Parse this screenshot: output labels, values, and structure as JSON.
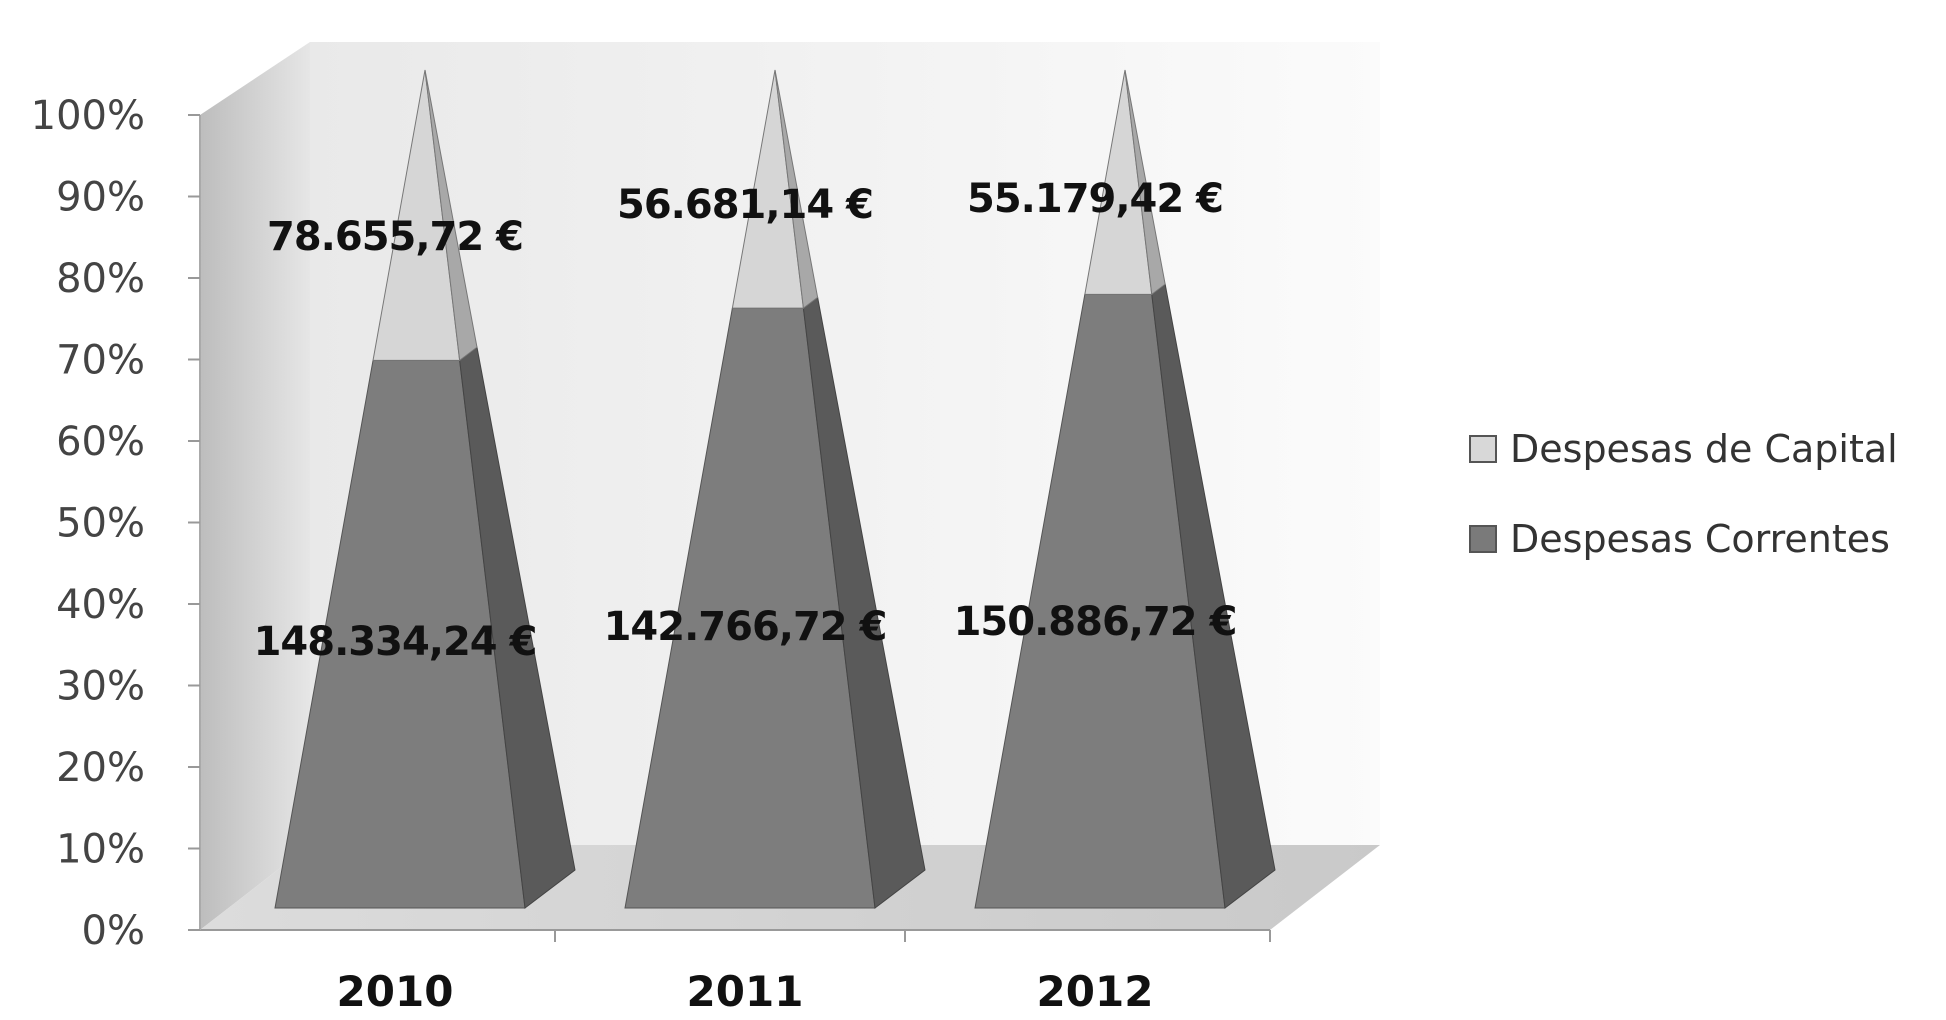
{
  "chart_data": {
    "type": "bar",
    "stacked": "percent",
    "shape": "pyramid-3d",
    "categories": [
      "2010",
      "2011",
      "2012"
    ],
    "series": [
      {
        "name": "Despesas Correntes",
        "values": [
          148334.24,
          142766.72,
          150886.72
        ],
        "labels": [
          "148.334,24 €",
          "142.766,72 €",
          "150.886,72 €"
        ],
        "color": "#7a7a7a"
      },
      {
        "name": "Despesas de Capital",
        "values": [
          78655.72,
          56681.14,
          55179.42
        ],
        "labels": [
          "78.655,72 €",
          "56.681,14 €",
          "55.179,42 €"
        ],
        "color": "#d8d8d8"
      }
    ],
    "yticks": [
      "0%",
      "10%",
      "20%",
      "30%",
      "40%",
      "50%",
      "60%",
      "70%",
      "80%",
      "90%",
      "100%"
    ],
    "ylim": [
      0,
      100
    ],
    "legend": "right",
    "grid": false
  }
}
